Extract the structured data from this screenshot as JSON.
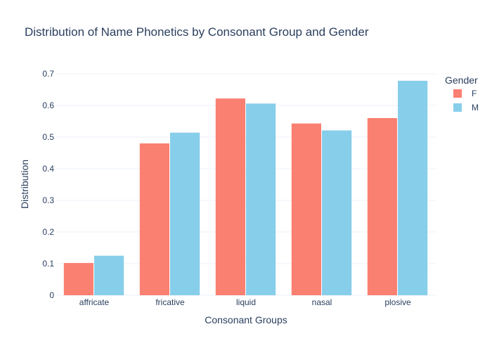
{
  "chart_data": {
    "type": "bar",
    "title": "Distribution of Name Phonetics by Consonant Group and Gender",
    "xlabel": "Consonant Groups",
    "ylabel": "Distribution",
    "categories": [
      "affricate",
      "fricative",
      "liquid",
      "nasal",
      "plosive"
    ],
    "ylim": [
      0,
      0.7
    ],
    "yticks": [
      0,
      0.1,
      0.2,
      0.3,
      0.4,
      0.5,
      0.6,
      0.7
    ],
    "ytick_labels": [
      "0",
      "0.1",
      "0.2",
      "0.3",
      "0.4",
      "0.5",
      "0.6",
      "0.7"
    ],
    "grid": true,
    "legend": {
      "title": "Gender",
      "placement": "top-right outside"
    },
    "series": [
      {
        "name": "F",
        "color": "#FA8072",
        "values": [
          0.102,
          0.48,
          0.622,
          0.543,
          0.56
        ]
      },
      {
        "name": "M",
        "color": "#87CEEB",
        "values": [
          0.125,
          0.514,
          0.606,
          0.521,
          0.678
        ]
      }
    ]
  }
}
